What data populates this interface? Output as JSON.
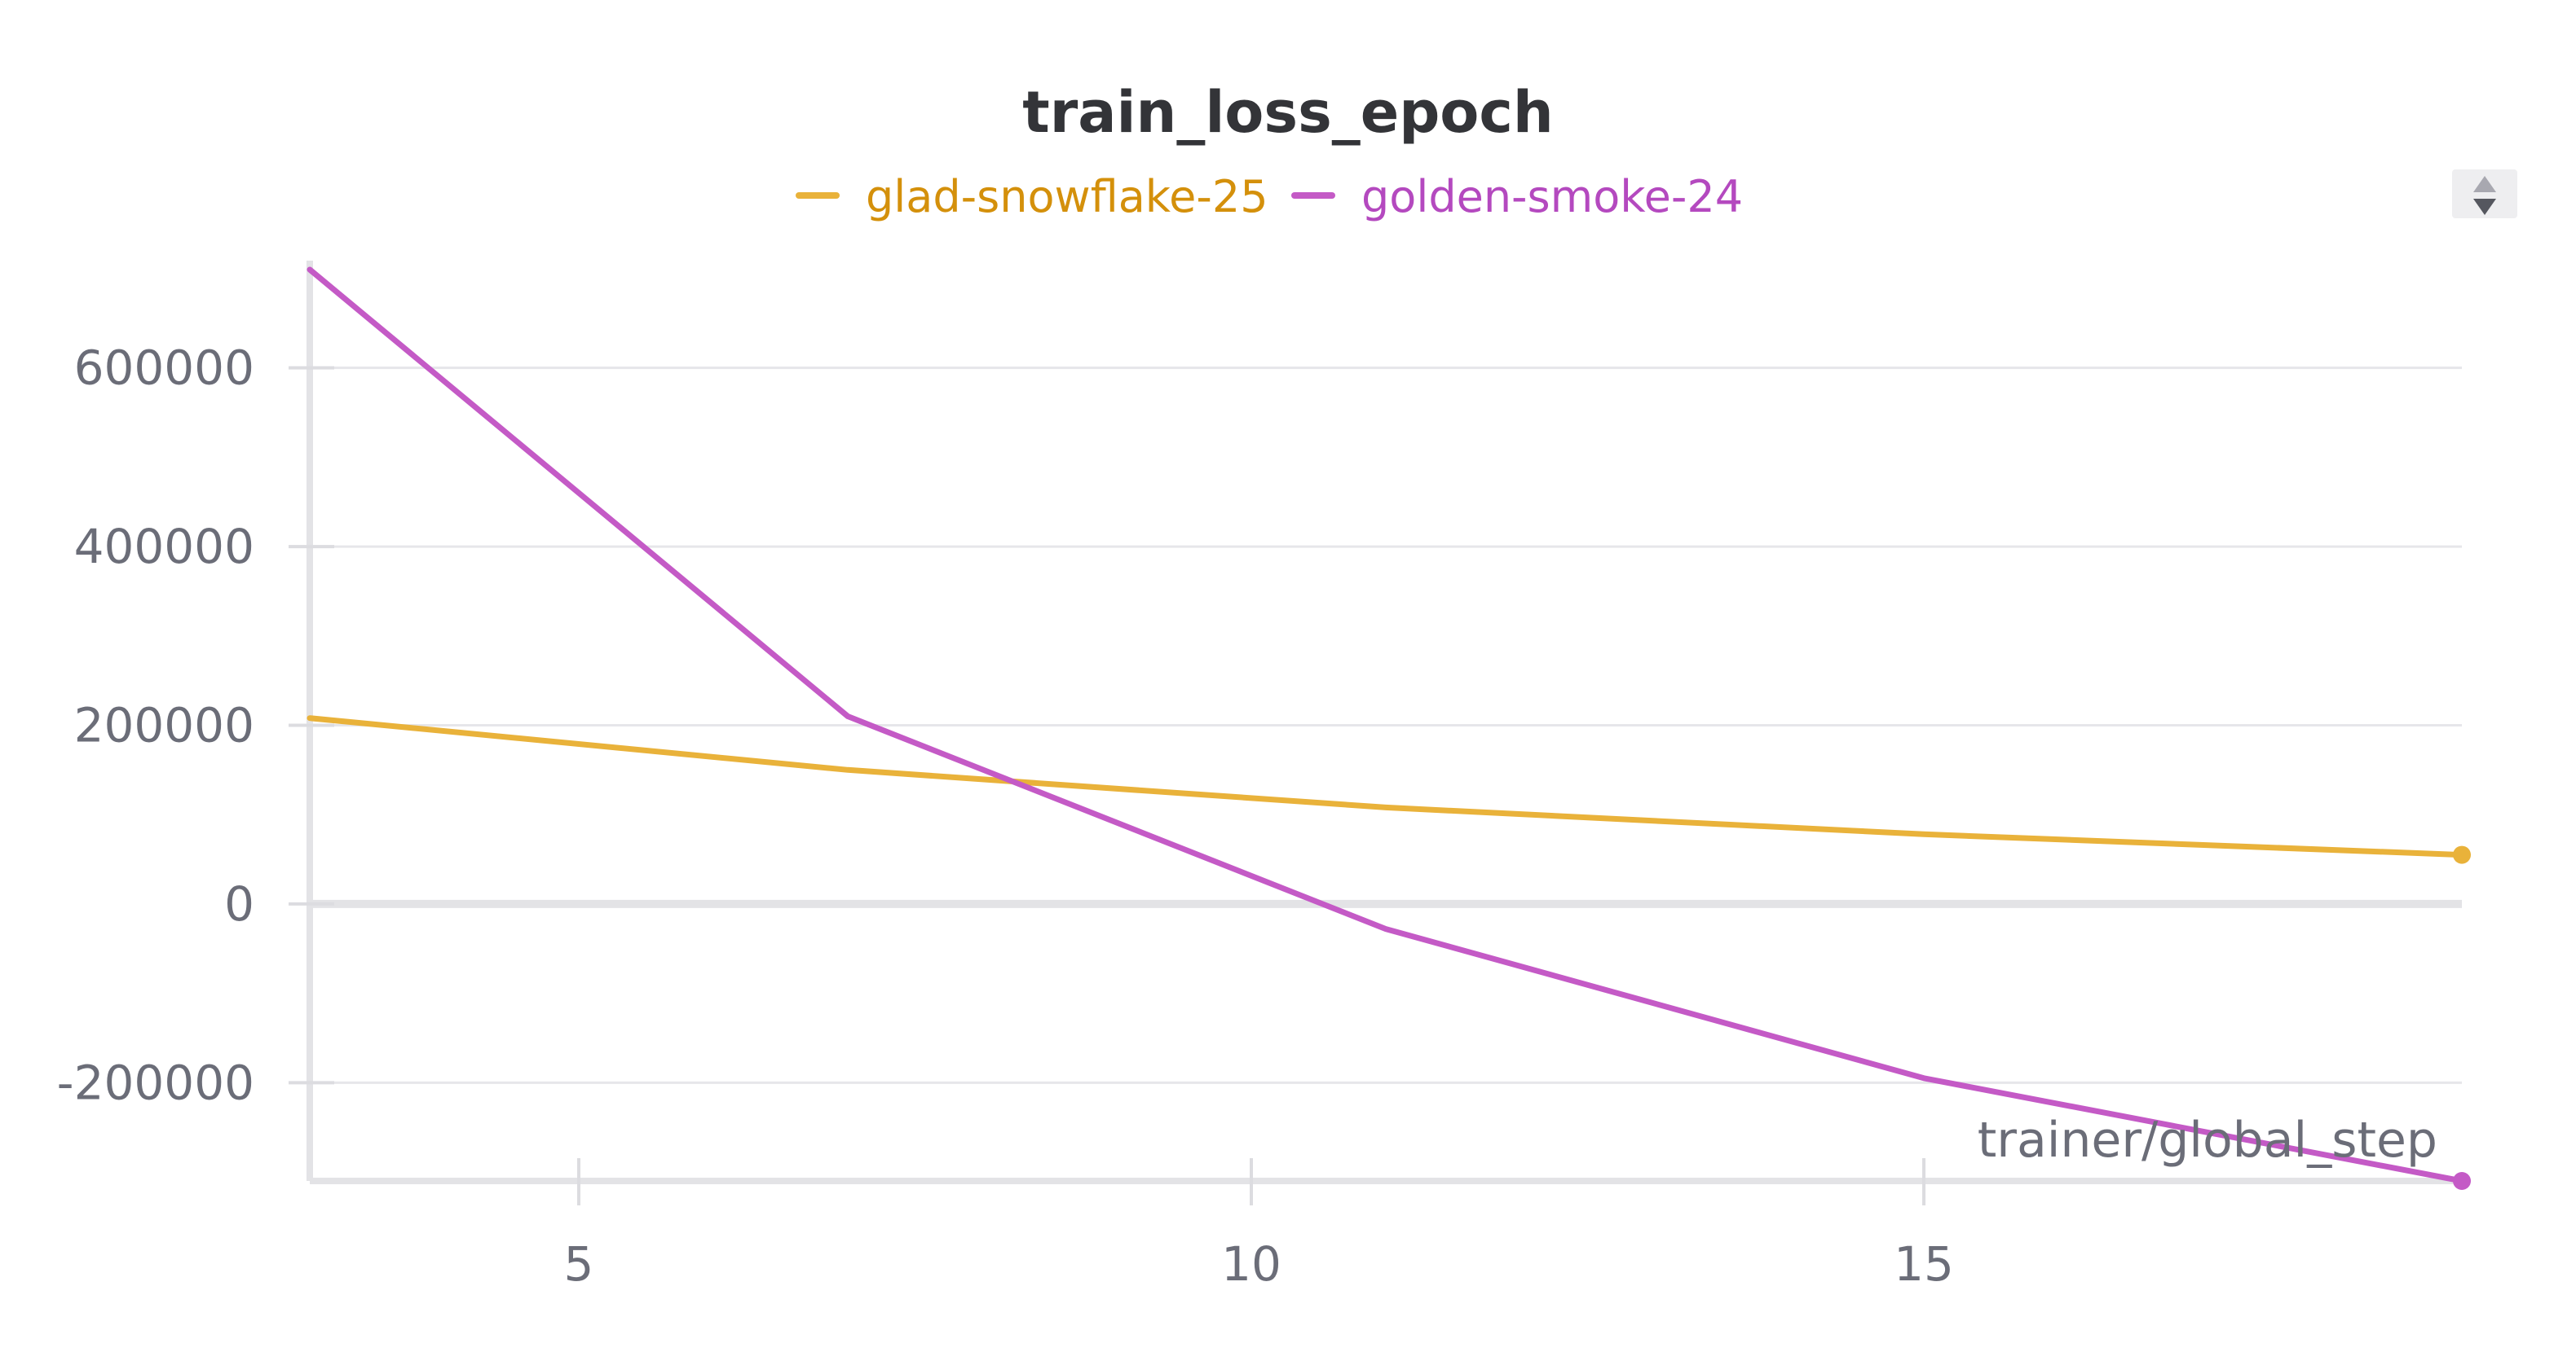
{
  "chart_data": {
    "type": "line",
    "title": "train_loss_epoch",
    "xlabel": "trainer/global_step",
    "ylabel": "",
    "xlim": [
      3,
      19
    ],
    "ylim": [
      -310000,
      720000
    ],
    "x_ticks": [
      5,
      10,
      15
    ],
    "y_ticks": [
      -200000,
      0,
      200000,
      400000,
      600000
    ],
    "grid": true,
    "legend_position": "top-center",
    "series": [
      {
        "name": "glad-snowflake-25",
        "color": "#e9b23a",
        "label_color": "#d4900b",
        "x": [
          3,
          7,
          11,
          15,
          19
        ],
        "y": [
          208000,
          150000,
          108000,
          78000,
          55000
        ]
      },
      {
        "name": "golden-smoke-24",
        "color": "#c45ac6",
        "label_color": "#b449bf",
        "x": [
          3,
          7,
          11,
          15,
          19
        ],
        "y": [
          710000,
          210000,
          -28000,
          -195000,
          -310000
        ]
      }
    ]
  }
}
